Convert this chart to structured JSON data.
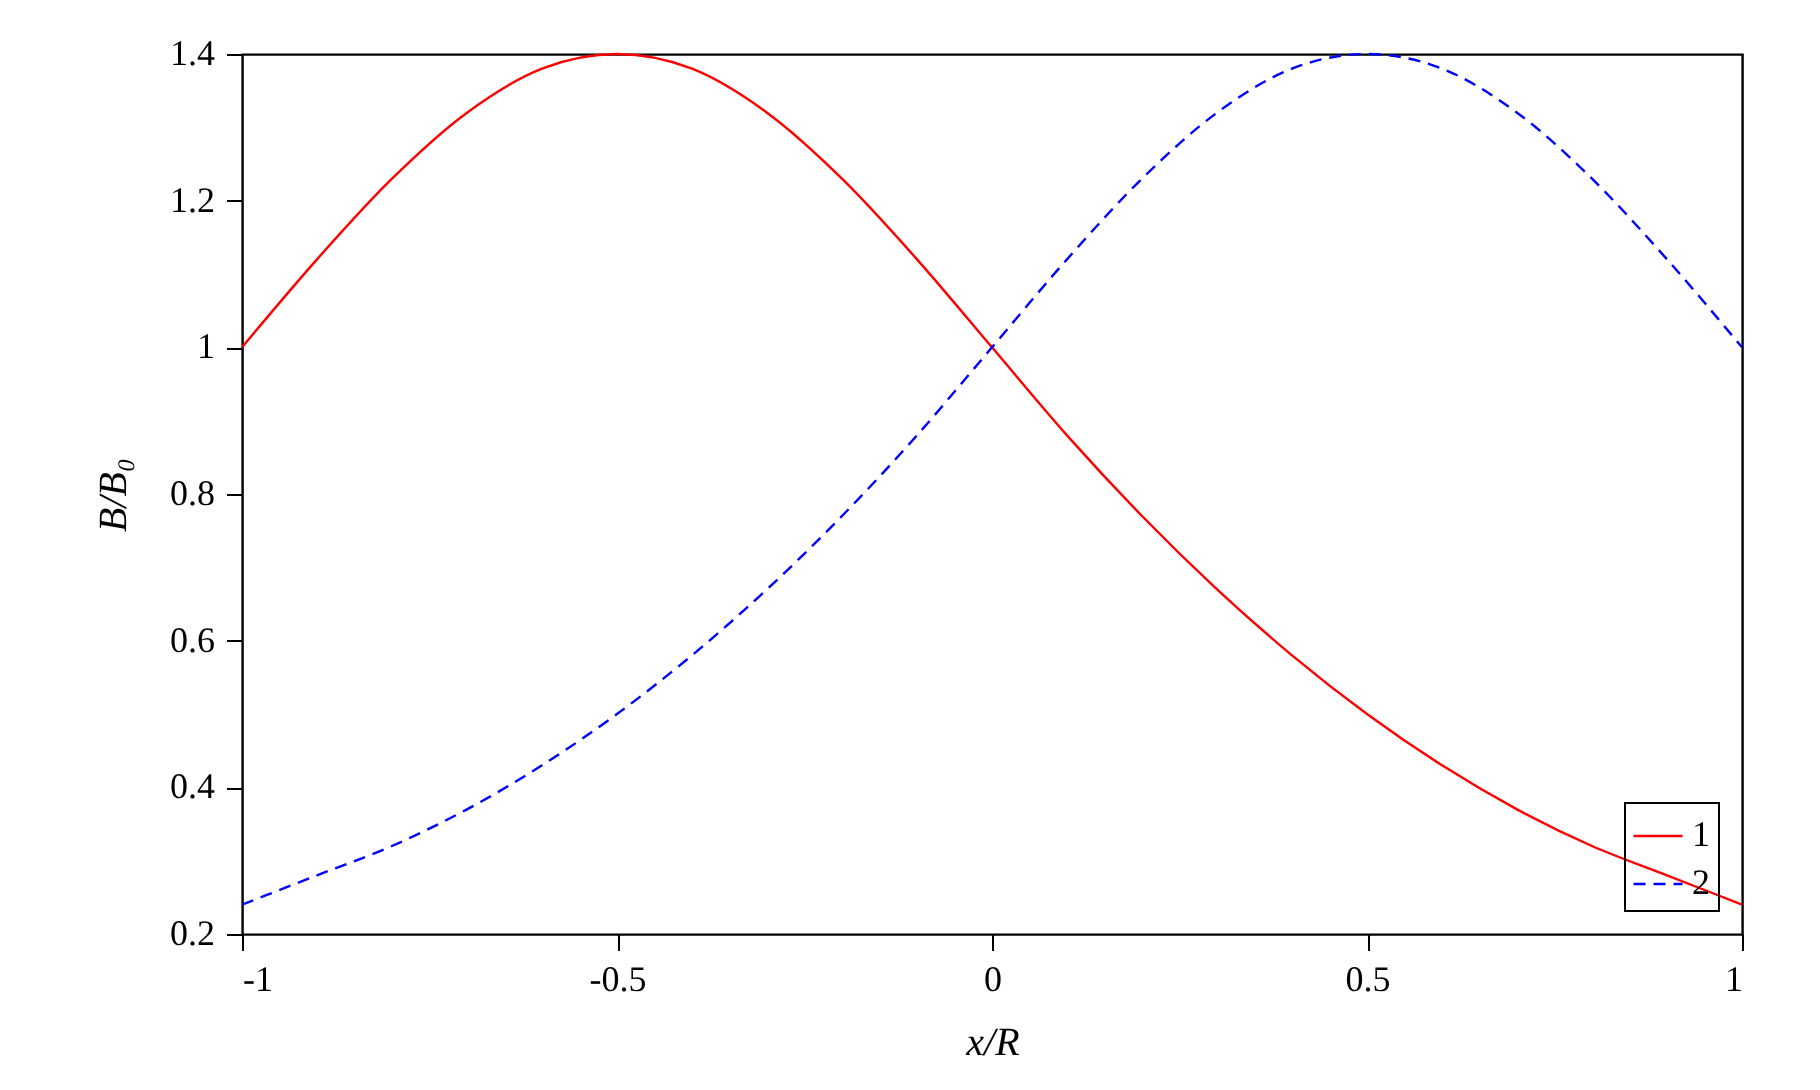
{
  "chart_data": {
    "type": "line",
    "xlabel": "x/R",
    "ylabel": "B/B₀",
    "x": [
      -1,
      -0.9,
      -0.8,
      -0.7,
      -0.6,
      -0.5,
      -0.4,
      -0.3,
      -0.2,
      -0.1,
      0,
      0.1,
      0.2,
      0.3,
      0.4,
      0.5,
      0.6,
      0.7,
      0.8,
      0.9,
      1
    ],
    "xlim": [
      -1,
      1
    ],
    "xticks": [
      -1,
      {
        "value": -0.5,
        "label": "-0.5"
      },
      0,
      0.5,
      1
    ],
    "ylim": [
      0.2,
      1.4
    ],
    "yticks": [
      0.2,
      0.4,
      0.6,
      0.8,
      1,
      1.2,
      1.4
    ],
    "legend": "bottom right",
    "series": [
      {
        "name": "1",
        "color": "#ff0000",
        "line_style": "solid",
        "values": [
          1.0,
          1.12,
          1.23,
          1.32,
          1.38,
          1.4,
          1.38,
          1.32,
          1.23,
          1.12,
          1.0,
          0.88,
          0.77,
          0.67,
          0.58,
          0.5,
          0.43,
          0.37,
          0.32,
          0.28,
          0.24
        ]
      },
      {
        "name": "2",
        "color": "#0000ff",
        "line_style": "dashed",
        "values": [
          0.24,
          0.28,
          0.32,
          0.37,
          0.43,
          0.5,
          0.58,
          0.67,
          0.77,
          0.88,
          1.0,
          1.12,
          1.23,
          1.32,
          1.38,
          1.4,
          1.38,
          1.32,
          1.23,
          1.12,
          1.0
        ]
      }
    ]
  }
}
